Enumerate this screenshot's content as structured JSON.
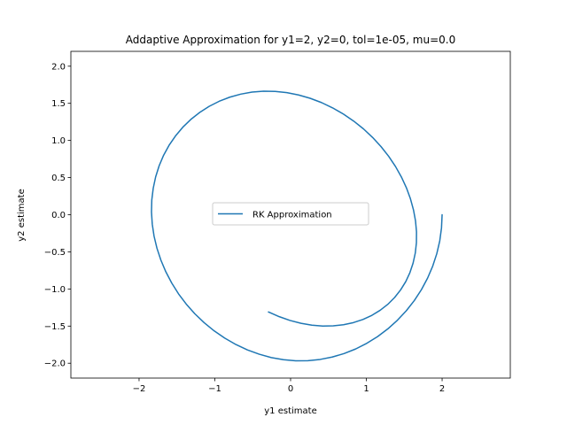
{
  "chart_data": {
    "type": "line",
    "title": "Addaptive Approximation for y1=2, y2=0, tol=1e-05, mu=0.0",
    "xlabel": "y1 estimate",
    "ylabel": "y2 estimate",
    "xlim": [
      -2.9,
      2.9
    ],
    "ylim": [
      -2.2,
      2.2
    ],
    "x_ticks": [
      -2,
      -1,
      0,
      1,
      2
    ],
    "x_tick_labels": [
      "−2",
      "−1",
      "0",
      "1",
      "2"
    ],
    "y_ticks": [
      -2.0,
      -1.5,
      -1.0,
      -0.5,
      0.0,
      0.5,
      1.0,
      1.5,
      2.0
    ],
    "y_tick_labels": [
      "−2.0",
      "−1.5",
      "−1.0",
      "−0.5",
      "0.0",
      "0.5",
      "1.0",
      "1.5",
      "2.0"
    ],
    "grid": false,
    "legend_position": "center",
    "series": [
      {
        "name": "RK Approximation",
        "color": "#1f77b4",
        "x": [
          2.0,
          1.992,
          1.969,
          1.93,
          1.876,
          1.808,
          1.727,
          1.633,
          1.527,
          1.41,
          1.284,
          1.149,
          1.007,
          0.859,
          0.706,
          0.549,
          0.39,
          0.229,
          0.068,
          -0.093,
          -0.254,
          -0.413,
          -0.57,
          -0.722,
          -0.869,
          -1.009,
          -1.141,
          -1.264,
          -1.377,
          -1.479,
          -1.569,
          -1.647,
          -1.712,
          -1.764,
          -1.802,
          -1.826,
          -1.836,
          -1.832,
          -1.813,
          -1.781,
          -1.735,
          -1.676,
          -1.604,
          -1.519,
          -1.423,
          -1.317,
          -1.2,
          -1.075,
          -0.942,
          -0.803,
          -0.658,
          -0.509,
          -0.357,
          -0.203,
          -0.049,
          0.105,
          0.258,
          0.409,
          0.556,
          0.698,
          0.834,
          0.963,
          1.083,
          1.194,
          1.295,
          1.385,
          1.463,
          1.529,
          1.582,
          1.622,
          1.649,
          1.662,
          1.661,
          1.646,
          1.617,
          1.575,
          1.52,
          1.452,
          1.373,
          1.283,
          1.182,
          1.073,
          0.955,
          0.83,
          0.699,
          0.563,
          0.424,
          0.281,
          0.137,
          -0.007,
          -0.15,
          -0.292
        ],
        "y": [
          0.0,
          -0.177,
          -0.352,
          -0.524,
          -0.692,
          -0.854,
          -1.009,
          -1.156,
          -1.294,
          -1.421,
          -1.537,
          -1.641,
          -1.731,
          -1.808,
          -1.87,
          -1.917,
          -1.949,
          -1.966,
          -1.967,
          -1.953,
          -1.924,
          -1.879,
          -1.821,
          -1.748,
          -1.662,
          -1.564,
          -1.454,
          -1.334,
          -1.204,
          -1.066,
          -0.92,
          -0.768,
          -0.611,
          -0.451,
          -0.289,
          -0.126,
          0.037,
          0.198,
          0.356,
          0.51,
          0.659,
          0.801,
          0.935,
          1.061,
          1.178,
          1.283,
          1.377,
          1.459,
          1.528,
          1.583,
          1.624,
          1.651,
          1.663,
          1.661,
          1.644,
          1.613,
          1.568,
          1.51,
          1.438,
          1.355,
          1.26,
          1.155,
          1.04,
          0.917,
          0.786,
          0.649,
          0.507,
          0.362,
          0.214,
          0.065,
          -0.084,
          -0.231,
          -0.376,
          -0.516,
          -0.651,
          -0.78,
          -0.901,
          -1.013,
          -1.115,
          -1.207,
          -1.287,
          -1.355,
          -1.411,
          -1.453,
          -1.482,
          -1.497,
          -1.499,
          -1.487,
          -1.462,
          -1.424,
          -1.373,
          -1.31
        ]
      }
    ]
  }
}
